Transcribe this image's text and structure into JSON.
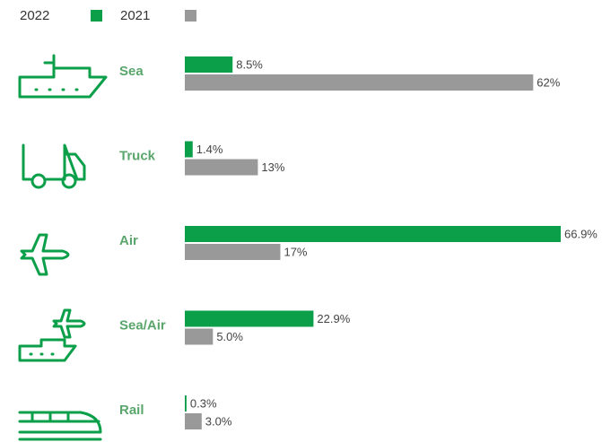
{
  "chart_data": {
    "type": "bar",
    "orientation": "horizontal",
    "categories": [
      "Sea",
      "Truck",
      "Air",
      "Sea/Air",
      "Rail"
    ],
    "series": [
      {
        "name": "2022",
        "color": "#0a9f48",
        "values": [
          8.5,
          1.4,
          66.9,
          22.9,
          0.3
        ],
        "value_labels": [
          "8.5%",
          "1.4%",
          "66.9%",
          "22.9%",
          "0.3%"
        ]
      },
      {
        "name": "2021",
        "color": "#999999",
        "values": [
          62,
          13,
          17,
          5.0,
          3.0
        ],
        "value_labels": [
          "62%",
          "13%",
          "17%",
          "5.0%",
          "3.0%"
        ]
      }
    ]
  }
}
